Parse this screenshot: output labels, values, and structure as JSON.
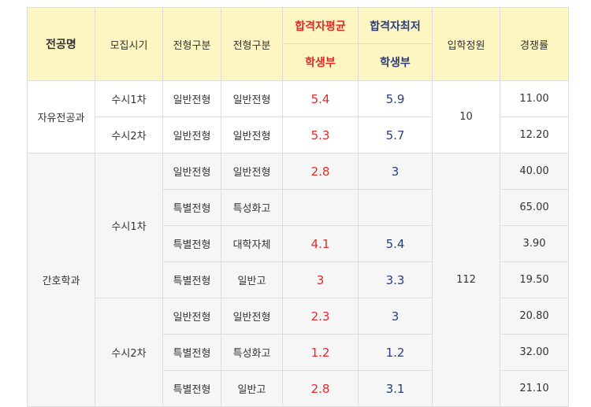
{
  "headers": {
    "major": "전공명",
    "period": "모집시기",
    "type1": "전형구분",
    "type2": "전형구분",
    "avg": "합격자평균",
    "min": "합격자최저",
    "sub_avg": "학생부",
    "sub_min": "학생부",
    "quota": "입학정원",
    "ratio": "경쟁률"
  },
  "groups": [
    {
      "major": "자유전공과",
      "quota": "10",
      "periods": [
        {
          "label": "수시1차",
          "rows": [
            {
              "type1": "일반전형",
              "type2": "일반전형",
              "avg": "5.4",
              "min": "5.9",
              "ratio": "11.00"
            }
          ]
        },
        {
          "label": "수시2차",
          "rows": [
            {
              "type1": "일반전형",
              "type2": "일반전형",
              "avg": "5.3",
              "min": "5.7",
              "ratio": "12.20"
            }
          ]
        }
      ]
    },
    {
      "major": "간호학과",
      "quota": "112",
      "periods": [
        {
          "label": "수시1차",
          "rows": [
            {
              "type1": "일반전형",
              "type2": "일반전형",
              "avg": "2.8",
              "min": "3",
              "ratio": "40.00"
            },
            {
              "type1": "특별전형",
              "type2": "특성화고",
              "avg": "",
              "min": "",
              "ratio": "65.00"
            },
            {
              "type1": "특별전형",
              "type2": "대학자체",
              "avg": "4.1",
              "min": "5.4",
              "ratio": "3.90"
            },
            {
              "type1": "특별전형",
              "type2": "일반고",
              "avg": "3",
              "min": "3.3",
              "ratio": "19.50"
            }
          ]
        },
        {
          "label": "수시2차",
          "rows": [
            {
              "type1": "일반전형",
              "type2": "일반전형",
              "avg": "2.3",
              "min": "3",
              "ratio": "20.80"
            },
            {
              "type1": "특별전형",
              "type2": "특성화고",
              "avg": "1.2",
              "min": "1.2",
              "ratio": "32.00"
            },
            {
              "type1": "특별전형",
              "type2": "일반고",
              "avg": "2.8",
              "min": "3.1",
              "ratio": "21.10"
            }
          ]
        }
      ]
    }
  ]
}
